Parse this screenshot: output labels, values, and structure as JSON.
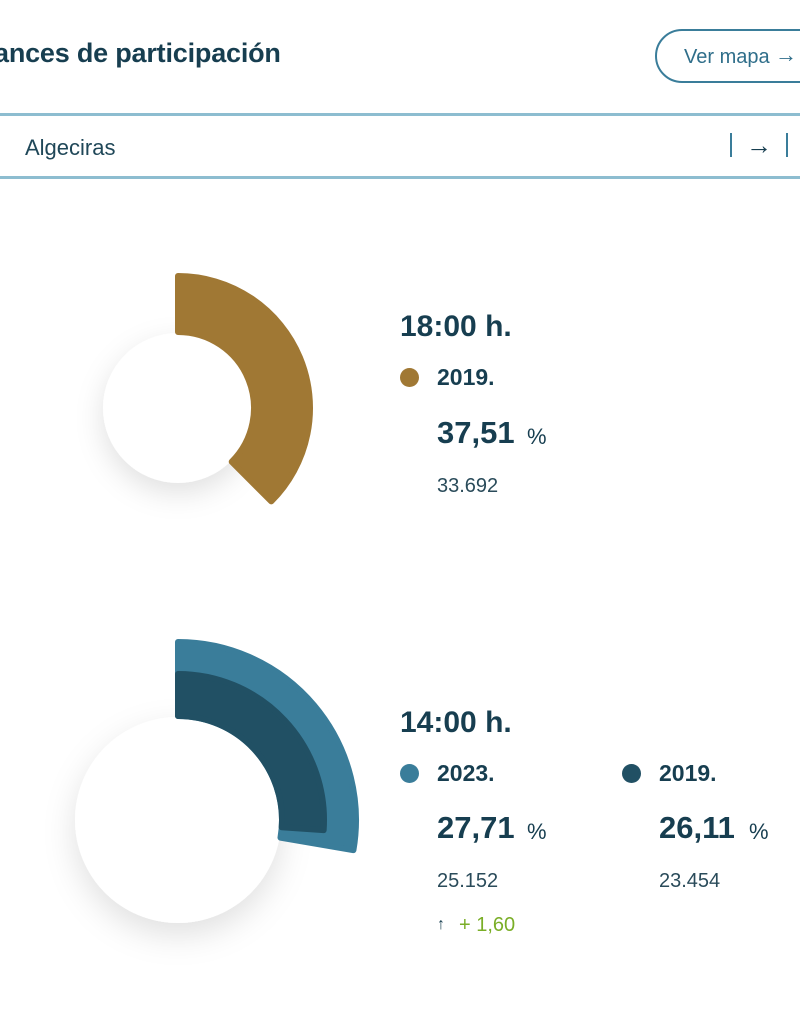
{
  "header": {
    "title": "ances de participación",
    "map_button_label": "Ver mapa",
    "map_button_icon": "arrow-right-icon"
  },
  "municipality": {
    "name": "Algeciras",
    "go_icon": "arrow-right-icon"
  },
  "colors": {
    "gold": "#a07834",
    "light_blue": "#3a7d9a",
    "dark_blue": "#215064",
    "positive_green": "#7aae27",
    "text_dark": "#173e50"
  },
  "section_1800": {
    "time": "18:00 h.",
    "items": [
      {
        "year": "2019.",
        "percent": "37,51",
        "unit": "%",
        "count": "33.692",
        "color": "#a07834"
      }
    ]
  },
  "section_1400": {
    "time": "14:00 h.",
    "items": [
      {
        "year": "2023.",
        "percent": "27,71",
        "unit": "%",
        "count": "25.152",
        "color": "#3a7d9a"
      },
      {
        "year": "2019.",
        "percent": "26,11",
        "unit": "%",
        "count": "23.454",
        "color": "#215064"
      }
    ],
    "delta_arrow": "↑",
    "delta": "+ 1,60"
  },
  "chart_data": [
    {
      "type": "pie",
      "series": [
        {
          "name": "2019.",
          "values": [
            37.51
          ]
        }
      ]
    },
    {
      "type": "pie",
      "series": [
        {
          "name": "2023.",
          "values": [
            27.71
          ]
        },
        {
          "name": "2019.",
          "values": [
            26.11
          ]
        }
      ]
    }
  ]
}
